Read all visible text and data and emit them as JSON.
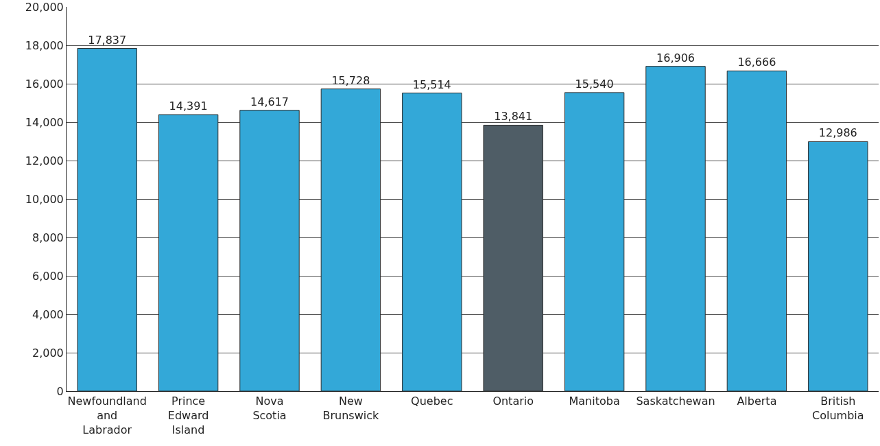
{
  "chart_data": {
    "type": "bar",
    "categories": [
      "Newfoundland and Labrador",
      "Prince Edward Island",
      "Nova Scotia",
      "New Brunswick",
      "Quebec",
      "Ontario",
      "Manitoba",
      "Saskatchewan",
      "Alberta",
      "British Columbia"
    ],
    "values": [
      17837,
      14391,
      14617,
      15728,
      15514,
      13841,
      15540,
      16906,
      16666,
      12986
    ],
    "colors": [
      "#33a8d8",
      "#33a8d8",
      "#33a8d8",
      "#33a8d8",
      "#33a8d8",
      "#4f5d66",
      "#33a8d8",
      "#33a8d8",
      "#33a8d8",
      "#33a8d8"
    ],
    "ylim": [
      0,
      20000
    ],
    "yticks": [
      {
        "value": 0,
        "label": "0"
      },
      {
        "value": 2000,
        "label": "2,000"
      },
      {
        "value": 4000,
        "label": "4,000"
      },
      {
        "value": 6000,
        "label": "6,000"
      },
      {
        "value": 8000,
        "label": "8,000"
      },
      {
        "value": 10000,
        "label": "10,000"
      },
      {
        "value": 12000,
        "label": "12,000"
      },
      {
        "value": 14000,
        "label": "14,000"
      },
      {
        "value": 16000,
        "label": "16,000"
      },
      {
        "value": 18000,
        "label": "18,000"
      },
      {
        "value": 20000,
        "label": "20,000"
      }
    ],
    "value_labels": [
      "17,837",
      "14,391",
      "14,617",
      "15,728",
      "15,514",
      "13,841",
      "15,540",
      "16,906",
      "16,666",
      "12,986"
    ],
    "grid": "y"
  }
}
